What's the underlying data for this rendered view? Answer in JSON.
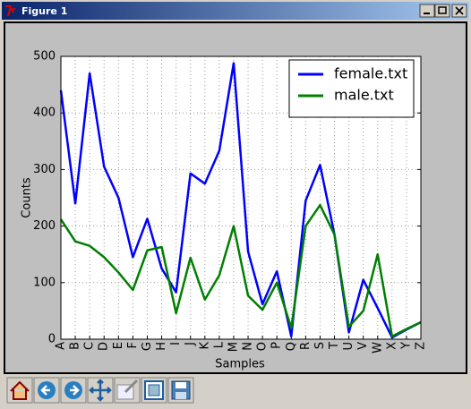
{
  "window": {
    "title": "Figure 1"
  },
  "chart_data": {
    "type": "line",
    "xlabel": "Samples",
    "ylabel": "Counts",
    "categories": [
      "A",
      "B",
      "C",
      "D",
      "E",
      "F",
      "G",
      "H",
      "I",
      "J",
      "K",
      "L",
      "M",
      "N",
      "O",
      "P",
      "Q",
      "R",
      "S",
      "T",
      "U",
      "V",
      "W",
      "X",
      "Y",
      "Z"
    ],
    "series": [
      {
        "name": "female.txt",
        "color": "#0000ff",
        "values": [
          440,
          240,
          470,
          305,
          250,
          145,
          213,
          125,
          83,
          293,
          275,
          333,
          488,
          155,
          62,
          120,
          5,
          245,
          308,
          185,
          12,
          105,
          55,
          3,
          17,
          30
        ]
      },
      {
        "name": "male.txt",
        "color": "#007f00",
        "values": [
          212,
          173,
          165,
          145,
          118,
          87,
          157,
          163,
          46,
          144,
          70,
          113,
          200,
          77,
          52,
          100,
          20,
          200,
          237,
          185,
          22,
          50,
          150,
          5,
          18,
          30
        ]
      }
    ],
    "ylim": [
      0,
      500
    ],
    "yticks": [
      0,
      100,
      200,
      300,
      400,
      500
    ],
    "grid": true,
    "legend": "upper right"
  }
}
